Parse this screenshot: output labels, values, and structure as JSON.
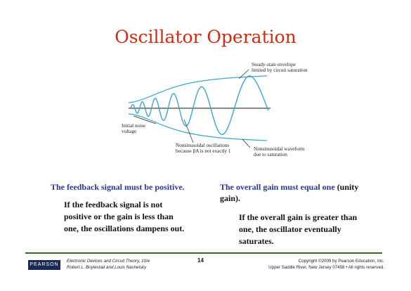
{
  "title": "Oscillator Operation",
  "diagram": {
    "labels": {
      "envelope": [
        "Steady-state envelope",
        "limited by circuit saturation"
      ],
      "noise": [
        "Initial noise",
        "voltage"
      ],
      "nonsinusoidal_osc": [
        "Nonsinusoidal oscillations",
        "because βA is not exactly 1"
      ],
      "nonsinusoidal_wave": [
        "Nonsinusoidal waveform",
        "due to saturation"
      ]
    },
    "colors": {
      "wave": "#3aa6cf",
      "axis": "#111111",
      "leader": "#222222"
    }
  },
  "left_col": {
    "heading": "The feedback signal must be positive.",
    "body": [
      "If the feedback signal is not",
      "positive or the gain is less than",
      "one, the oscillations dampens out."
    ]
  },
  "right_col": {
    "heading_blue": "The overall gain must equal one",
    "heading_rest": " (unity",
    "heading_line2": "gain).",
    "body": [
      "If the overall gain is greater than",
      "one, the oscillator eventually",
      "saturates."
    ]
  },
  "footer": {
    "logo": "PEARSON",
    "left": [
      "Electronic Devices and Circuit Theory, 10/e",
      "Robert L. Boylestad and Louis Nashelsky"
    ],
    "page": "14",
    "right": [
      "Copyright ©2009 by Pearson Education, Inc.",
      "Upper Saddle River, New Jersey 07458 • All rights reserved."
    ]
  }
}
